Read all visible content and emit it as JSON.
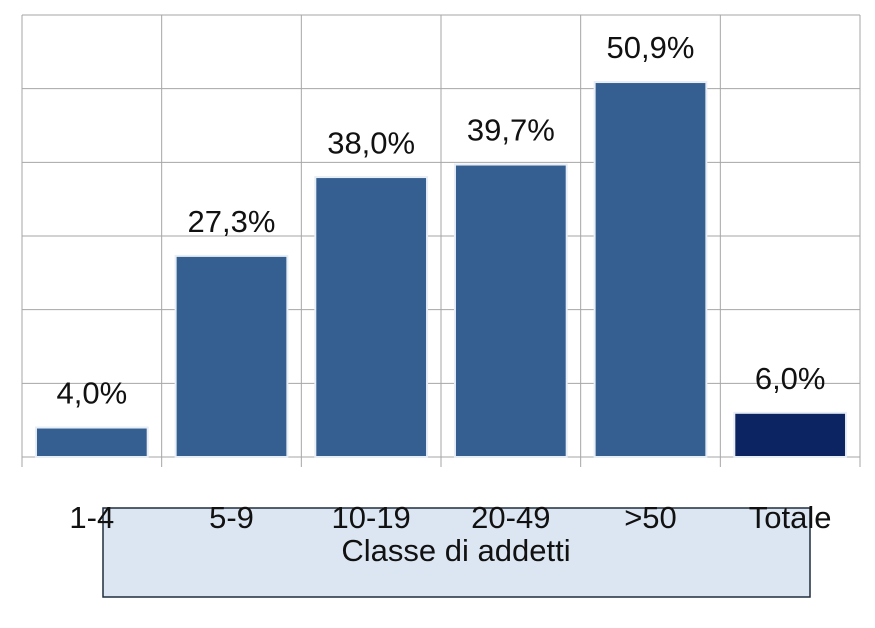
{
  "chart_data": {
    "type": "bar",
    "categories": [
      "1-4",
      "5-9",
      "10-19",
      "20-49",
      ">50",
      "Totale"
    ],
    "values": [
      4.0,
      27.3,
      38.0,
      39.7,
      50.9,
      6.0
    ],
    "value_labels": [
      "4,0%",
      "27,3%",
      "38,0%",
      "39,7%",
      "50,9%",
      "6,0%"
    ],
    "colors": [
      "#355f91",
      "#355f91",
      "#355f91",
      "#355f91",
      "#355f91",
      "#0d2462"
    ],
    "x_label": "Classe di addetti",
    "ylim": [
      0,
      60
    ],
    "yticks": [
      0,
      10,
      20,
      30,
      40,
      50,
      60
    ],
    "grid": true
  }
}
